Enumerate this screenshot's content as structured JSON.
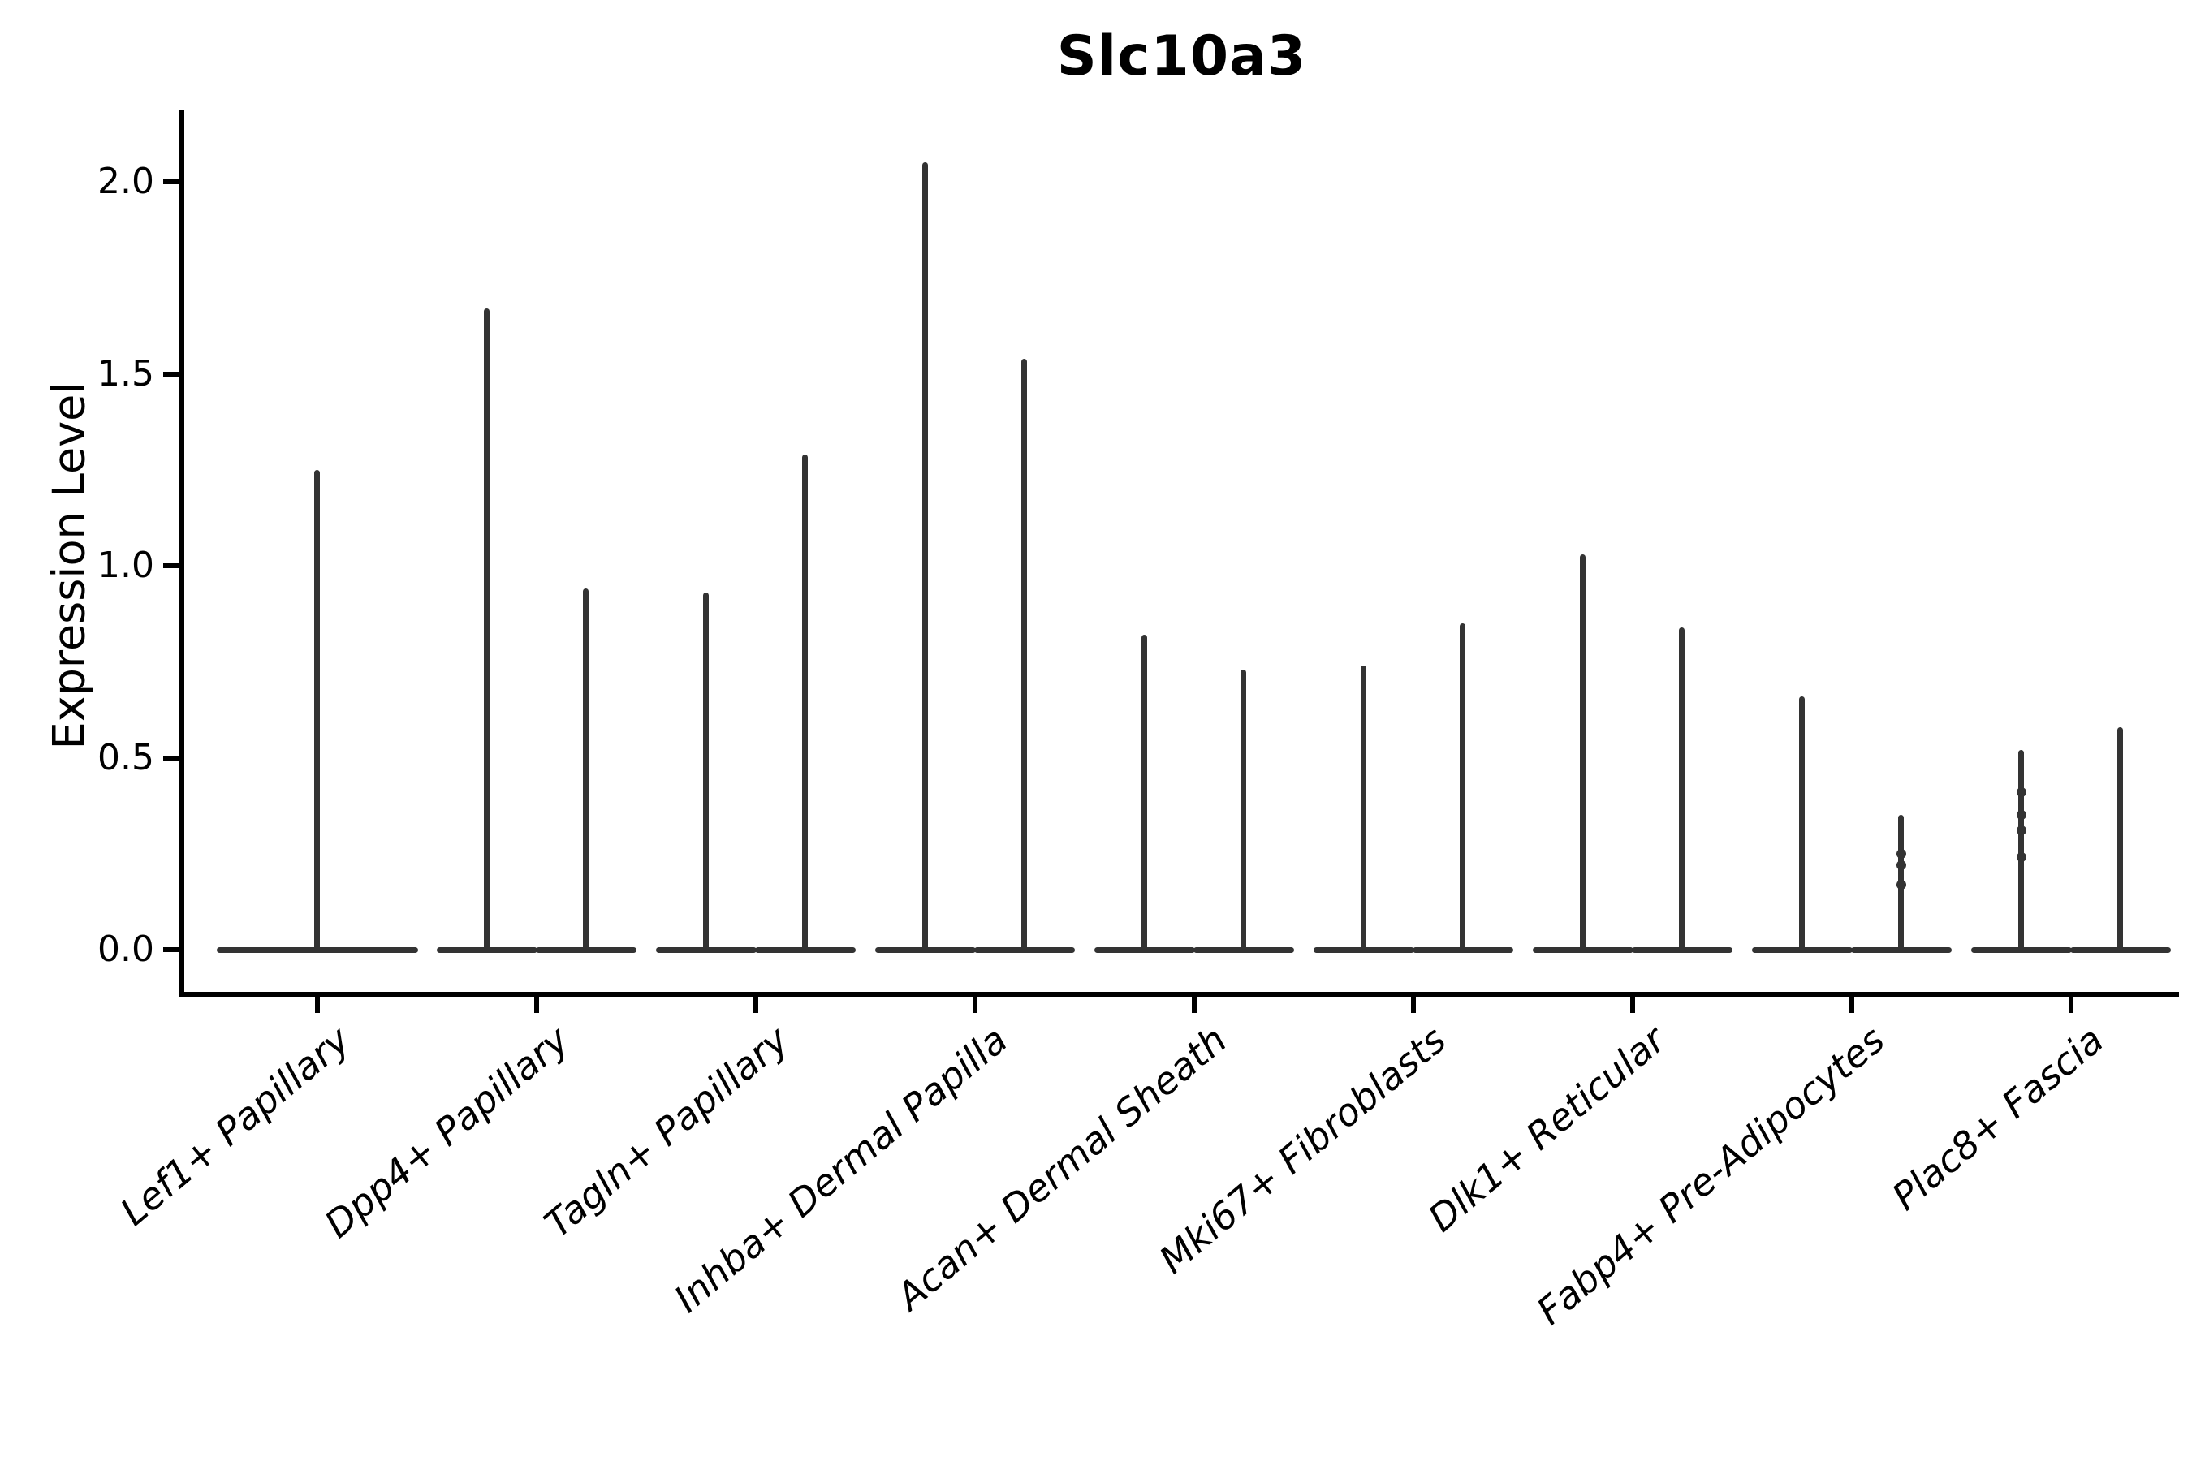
{
  "chart_data": {
    "type": "violin",
    "title": "Slc10a3",
    "ylabel": "Expression Level",
    "xlabel": "",
    "yticks": [
      0.0,
      0.5,
      1.0,
      1.5,
      2.0
    ],
    "ylim": [
      -0.11,
      2.18
    ],
    "grid": false,
    "legend": "none",
    "floor_value": 0.0,
    "note_shape": "each violin is a flat wide body at 0 with a thin vertical spike up to its max expression value",
    "categories": [
      "Lef1+ Papillary",
      "Dpp4+ Papillary",
      "Tagln+ Papillary",
      "Inhba+ Dermal Papilla",
      "Acan+ Dermal Sheath",
      "Mki67+ Fibroblasts",
      "Dlk1+ Reticular",
      "Fabp4+ Pre-Adipocytes",
      "Plac8+ Fascia"
    ],
    "violins": [
      {
        "category": "Lef1+ Papillary",
        "maxima": [
          1.25
        ],
        "dots": [
          []
        ]
      },
      {
        "category": "Dpp4+ Papillary",
        "maxima": [
          1.67,
          0.94
        ],
        "dots": [
          [],
          []
        ]
      },
      {
        "category": "Tagln+ Papillary",
        "maxima": [
          0.93,
          1.29
        ],
        "dots": [
          [],
          []
        ]
      },
      {
        "category": "Inhba+ Dermal Papilla",
        "maxima": [
          2.05,
          1.54
        ],
        "dots": [
          [],
          []
        ]
      },
      {
        "category": "Acan+ Dermal Sheath",
        "maxima": [
          0.82,
          0.73
        ],
        "dots": [
          [],
          []
        ]
      },
      {
        "category": "Mki67+ Fibroblasts",
        "maxima": [
          0.74,
          0.85
        ],
        "dots": [
          [],
          []
        ]
      },
      {
        "category": "Dlk1+ Reticular",
        "maxima": [
          1.03,
          0.84
        ],
        "dots": [
          [],
          []
        ]
      },
      {
        "category": "Fabp4+ Pre-Adipocytes",
        "maxima": [
          0.66,
          0.35
        ],
        "dots": [
          [],
          [
            0.17,
            0.22,
            0.25
          ]
        ]
      },
      {
        "category": "Plac8+ Fascia",
        "maxima": [
          0.52,
          0.58
        ],
        "dots": [
          [
            0.24,
            0.31,
            0.35,
            0.41
          ],
          []
        ]
      }
    ],
    "colors": {
      "violin": "#333333",
      "axis": "#000000",
      "text": "#000000",
      "background": "#ffffff"
    }
  }
}
